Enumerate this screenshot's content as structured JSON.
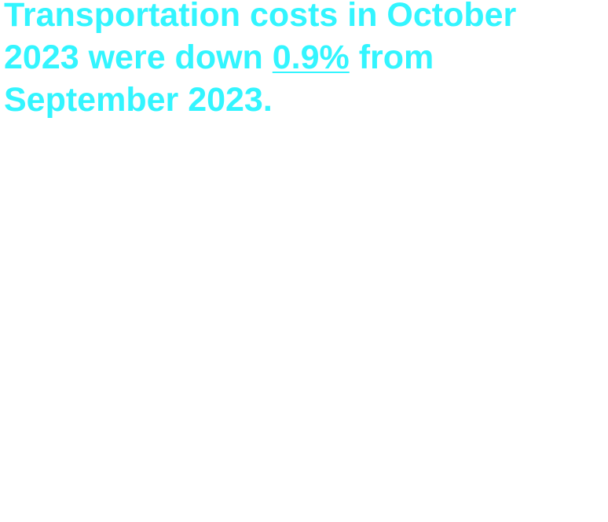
{
  "headline": {
    "before": "Transportation costs in October 2023 were down ",
    "link": "0.9%",
    "after": " from September 2023."
  }
}
